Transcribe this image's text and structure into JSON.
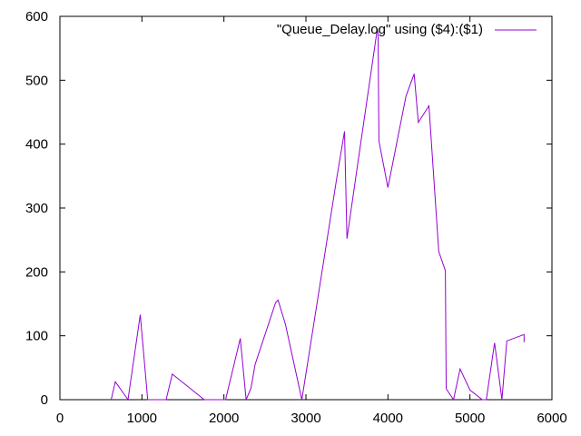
{
  "chart_data": {
    "type": "line",
    "xlim": [
      0,
      6000
    ],
    "ylim": [
      0,
      600
    ],
    "x_ticks": [
      0,
      1000,
      2000,
      3000,
      4000,
      5000,
      6000
    ],
    "y_ticks": [
      0,
      100,
      200,
      300,
      400,
      500,
      600
    ],
    "x_tick_labels": [
      "0",
      "1000",
      "2000",
      "3000",
      "4000",
      "5000",
      "6000"
    ],
    "y_tick_labels": [
      "0",
      "100",
      "200",
      "300",
      "400",
      "500",
      "600"
    ],
    "grid": false,
    "legend_position": "top-right",
    "series": [
      {
        "name": "\"Queue_Delay.log\" using ($4):($1)",
        "color": "#9400d3",
        "points": [
          [
            625,
            0
          ],
          [
            675,
            28
          ],
          [
            830,
            0
          ],
          [
            980,
            133
          ],
          [
            1070,
            0
          ],
          [
            1295,
            0
          ],
          [
            1370,
            40
          ],
          [
            1760,
            0
          ],
          [
            2020,
            0
          ],
          [
            2200,
            96
          ],
          [
            2270,
            0
          ],
          [
            2330,
            18
          ],
          [
            2380,
            55
          ],
          [
            2630,
            152
          ],
          [
            2660,
            156
          ],
          [
            2750,
            118
          ],
          [
            2950,
            0
          ],
          [
            3380,
            350
          ],
          [
            3470,
            420
          ],
          [
            3500,
            252
          ],
          [
            3610,
            350
          ],
          [
            3870,
            580
          ],
          [
            3880,
            572
          ],
          [
            3890,
            405
          ],
          [
            4000,
            332
          ],
          [
            4220,
            475
          ],
          [
            4320,
            510
          ],
          [
            4370,
            434
          ],
          [
            4500,
            460
          ],
          [
            4620,
            232
          ],
          [
            4700,
            202
          ],
          [
            4710,
            17
          ],
          [
            4800,
            0
          ],
          [
            4880,
            48
          ],
          [
            5000,
            15
          ],
          [
            5150,
            0
          ],
          [
            5200,
            0
          ],
          [
            5300,
            89
          ],
          [
            5390,
            0
          ],
          [
            5450,
            92
          ],
          [
            5660,
            102
          ],
          [
            5660,
            90
          ]
        ]
      }
    ]
  }
}
